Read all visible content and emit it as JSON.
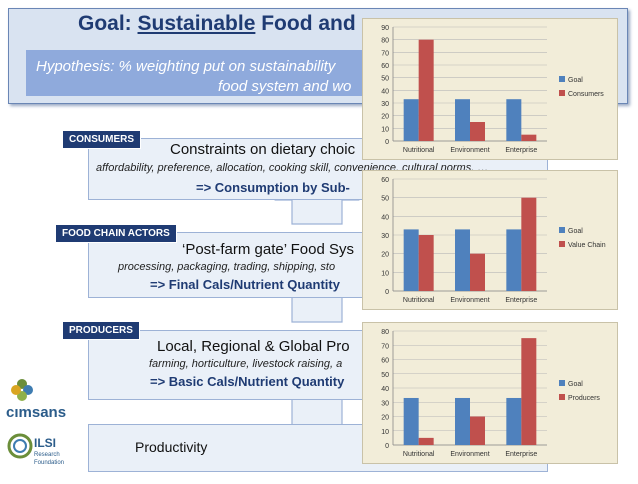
{
  "goal": {
    "prefix": "Goal: ",
    "underlined": "Sustainable",
    "suffix": " Food and"
  },
  "hypothesis": {
    "line1": "Hypothesis: % weighting put on sustainability",
    "line2": "food system and wo"
  },
  "stages": [
    {
      "tag": "CONSUMERS",
      "title": "Constraints on dietary choic",
      "subtitle": "affordability, preference, allocation, cooking skill, convenience, cultural norms, …",
      "result": "=> Consumption by Sub-"
    },
    {
      "tag": "FOOD CHAIN ACTORS",
      "title": "‘Post-farm gate’ Food Sys",
      "subtitle": "processing, packaging, trading, shipping, sto",
      "result": "=> Final Cals/Nutrient Quantity"
    },
    {
      "tag": "PRODUCERS",
      "title": "Local, Regional & Global Pro",
      "subtitle": "farming, horticulture, livestock raising, a",
      "result": "=> Basic Cals/Nutrient Quantity"
    }
  ],
  "productivity_label": "Productivity",
  "logos": {
    "cimsans": "cımsans",
    "ilsi": "ILSI",
    "ilsi_sub1": "Research",
    "ilsi_sub2": "Foundation"
  },
  "colors": {
    "goal_bar": "#4f81bd",
    "other_bar": "#c0504d",
    "panel_bg": "#f2edd9"
  },
  "chart_data": [
    {
      "type": "bar",
      "categories": [
        "Nutritional",
        "Environment",
        "Enterprise"
      ],
      "series": [
        {
          "name": "Goal",
          "values": [
            33,
            33,
            33
          ]
        },
        {
          "name": "Consumers",
          "values": [
            80,
            15,
            5
          ]
        }
      ],
      "ylim": [
        0,
        90
      ],
      "yticks": [
        0,
        10,
        20,
        30,
        40,
        50,
        60,
        70,
        80,
        90
      ],
      "legend": "right"
    },
    {
      "type": "bar",
      "categories": [
        "Nutritional",
        "Environment",
        "Enterprise"
      ],
      "series": [
        {
          "name": "Goal",
          "values": [
            33,
            33,
            33
          ]
        },
        {
          "name": "Value Chain",
          "values": [
            30,
            20,
            50
          ]
        }
      ],
      "ylim": [
        0,
        60
      ],
      "yticks": [
        0,
        10,
        20,
        30,
        40,
        50,
        60
      ],
      "legend": "right"
    },
    {
      "type": "bar",
      "categories": [
        "Nutritional",
        "Environment",
        "Enterprise"
      ],
      "series": [
        {
          "name": "Goal",
          "values": [
            33,
            33,
            33
          ]
        },
        {
          "name": "Producers",
          "values": [
            5,
            20,
            75
          ]
        }
      ],
      "ylim": [
        0,
        80
      ],
      "yticks": [
        0,
        10,
        20,
        30,
        40,
        50,
        60,
        70,
        80
      ],
      "legend": "right"
    }
  ]
}
